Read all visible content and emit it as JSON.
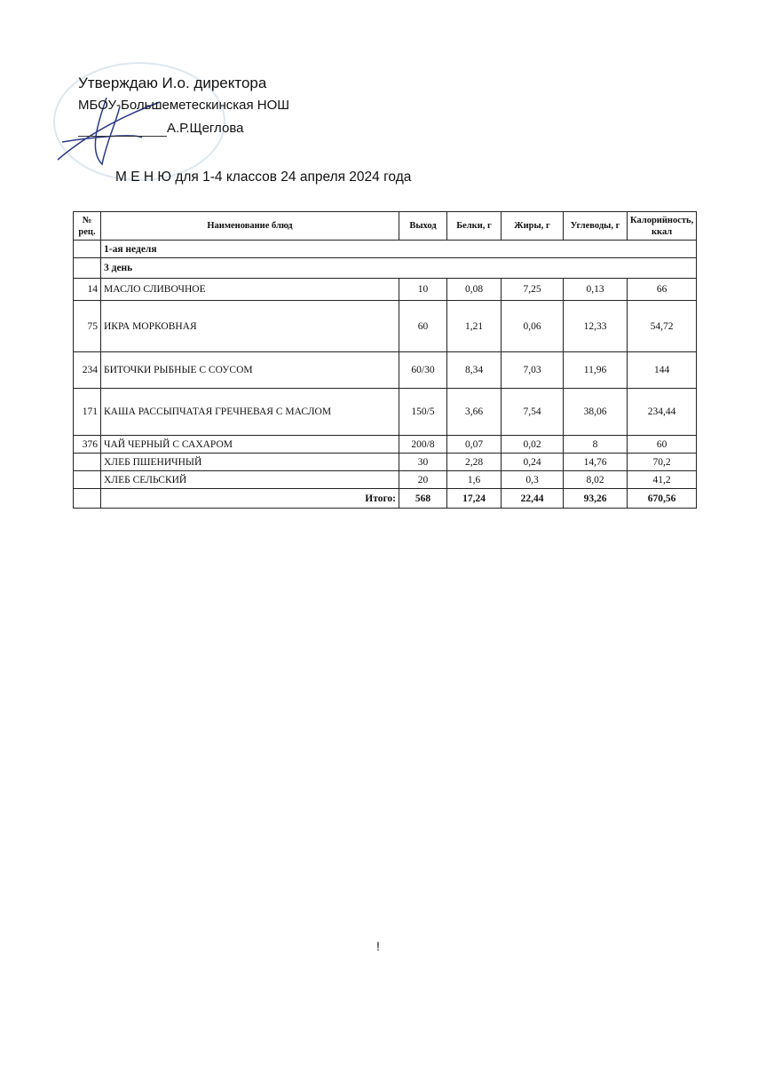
{
  "approval": {
    "line1": "Утверждаю И.о.  директора",
    "line2": "МБОУ-Большеметескинская НОШ",
    "line3": "А.Р.Щеглова"
  },
  "title": "М Е Н Ю  для 1-4 классов 24 апреля  2024 года",
  "table": {
    "headers": [
      "№ рец.",
      "Наименование блюд",
      "Выход",
      "Белки, г",
      "Жиры, г",
      "Углеводы, г",
      "Калорийность, ккал"
    ],
    "week": "1-ая неделя",
    "day": "3 день",
    "rows": [
      {
        "rec": "14",
        "name": "МАСЛО СЛИВОЧНОЕ",
        "out": "10",
        "prot": "0,08",
        "fat": "7,25",
        "carb": "0,13",
        "kcal": "66"
      },
      {
        "rec": "75",
        "name": "ИКРА МОРКОВНАЯ",
        "out": "60",
        "prot": "1,21",
        "fat": "0,06",
        "carb": "12,33",
        "kcal": "54,72"
      },
      {
        "rec": "234",
        "name": "БИТОЧКИ РЫБНЫЕ С СОУСОМ",
        "out": "60/30",
        "prot": "8,34",
        "fat": "7,03",
        "carb": "11,96",
        "kcal": "144"
      },
      {
        "rec": "171",
        "name": "КАША РАССЫПЧАТАЯ ГРЕЧНЕВАЯ С МАСЛОМ",
        "out": "150/5",
        "prot": "3,66",
        "fat": "7,54",
        "carb": "38,06",
        "kcal": "234,44"
      },
      {
        "rec": "376",
        "name": "ЧАЙ ЧЕРНЫЙ С САХАРОМ",
        "out": "200/8",
        "prot": "0,07",
        "fat": "0,02",
        "carb": "8",
        "kcal": "60"
      },
      {
        "rec": "",
        "name": "ХЛЕБ ПШЕНИЧНЫЙ",
        "out": "30",
        "prot": "2,28",
        "fat": "0,24",
        "carb": "14,76",
        "kcal": "70,2"
      },
      {
        "rec": "",
        "name": "ХЛЕБ СЕЛЬСКИЙ",
        "out": "20",
        "prot": "1,6",
        "fat": "0,3",
        "carb": "8,02",
        "kcal": "41,2"
      }
    ],
    "total": {
      "label": "Итого:",
      "out": "568",
      "prot": "17,24",
      "fat": "22,44",
      "carb": "93,26",
      "kcal": "670,56"
    }
  }
}
